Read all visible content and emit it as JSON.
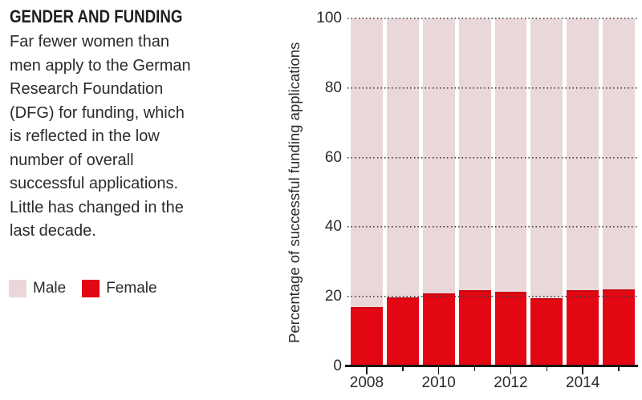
{
  "header": {
    "title": "GENDER AND FUNDING",
    "description": "Far fewer women than\nmen apply to the German\nResearch Foundation\n(DFG) for funding, which\nis reflected in the low\nnumber of overall\nsuccessful applications.\nLittle has changed in the\nlast decade."
  },
  "colors": {
    "male": "#ead7da",
    "female": "#e30613",
    "axis": "#161616",
    "text": "#2b2b2b"
  },
  "chart_data": {
    "type": "bar",
    "subtype": "stacked-100-percent",
    "categories": [
      "2008",
      "2009",
      "2010",
      "2011",
      "2012",
      "2013",
      "2014",
      "2015"
    ],
    "x_tick_labels": [
      "2008",
      "",
      "2010",
      "",
      "2012",
      "",
      "2014",
      ""
    ],
    "series": [
      {
        "name": "Male",
        "color": "#ead7da",
        "values": [
          83.0,
          80.1,
          79.0,
          78.2,
          78.6,
          80.3,
          78.1,
          77.8
        ]
      },
      {
        "name": "Female",
        "color": "#e30613",
        "values": [
          17.0,
          19.9,
          21.0,
          21.8,
          21.4,
          19.7,
          21.9,
          22.2
        ]
      }
    ],
    "title": "",
    "xlabel": "",
    "ylabel": "Percentage of successful funding applications",
    "ylim": [
      0,
      100
    ],
    "yticks": [
      0,
      20,
      40,
      60,
      80,
      100
    ],
    "grid": "dotted horizontal lines at each y tick, drawn over bars",
    "legend_position": "left of chart, below description"
  }
}
